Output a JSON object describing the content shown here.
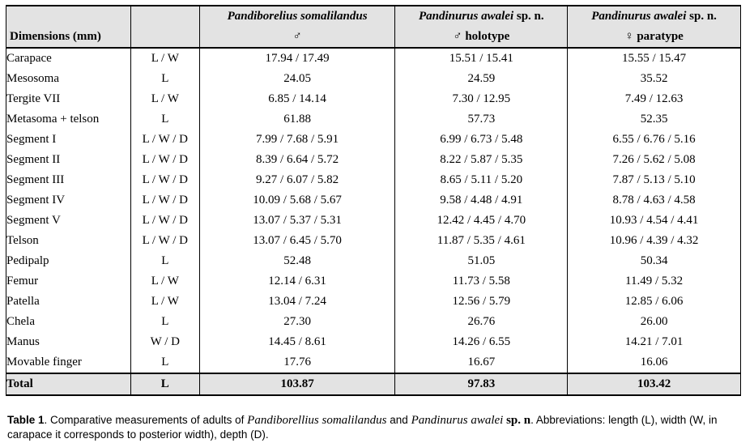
{
  "headers": {
    "dimensions": "Dimensions (mm)",
    "col1": {
      "species": "Pandiborelius somalilandus",
      "sn": "",
      "line2": "♂"
    },
    "col2": {
      "species": "Pandinurus awalei",
      "sn": "sp. n.",
      "line2": "♂ holotype"
    },
    "col3": {
      "species": "Pandinurus awalei",
      "sn": "sp. n.",
      "line2": "♀ paratype"
    }
  },
  "rows": [
    {
      "dimension": "Carapace",
      "indent": 0,
      "measure": "L / W",
      "v1": "17.94 / 17.49",
      "v2": "15.51 / 15.41",
      "v3": "15.55 / 15.47"
    },
    {
      "dimension": "Mesosoma",
      "indent": 0,
      "measure": "L",
      "v1": "24.05",
      "v2": "24.59",
      "v3": "35.52"
    },
    {
      "dimension": "Tergite VII",
      "indent": 1,
      "measure": "L / W",
      "v1": "6.85 / 14.14",
      "v2": "7.30 / 12.95",
      "v3": "7.49 / 12.63"
    },
    {
      "dimension": "Metasoma + telson",
      "indent": 0,
      "measure": "L",
      "v1": "61.88",
      "v2": "57.73",
      "v3": "52.35"
    },
    {
      "dimension": "Segment I",
      "indent": 1,
      "measure": "L / W / D",
      "v1": "7.99 / 7.68 / 5.91",
      "v2": "6.99 / 6.73 / 5.48",
      "v3": "6.55 / 6.76 / 5.16"
    },
    {
      "dimension": "Segment II",
      "indent": 1,
      "measure": "L / W / D",
      "v1": "8.39 / 6.64 / 5.72",
      "v2": "8.22 / 5.87 / 5.35",
      "v3": "7.26 / 5.62 / 5.08"
    },
    {
      "dimension": "Segment III",
      "indent": 1,
      "measure": "L / W / D",
      "v1": "9.27 / 6.07 / 5.82",
      "v2": "8.65 / 5.11 / 5.20",
      "v3": "7.87 / 5.13 / 5.10"
    },
    {
      "dimension": "Segment IV",
      "indent": 1,
      "measure": "L / W / D",
      "v1": "10.09 / 5.68 / 5.67",
      "v2": "9.58 / 4.48 / 4.91",
      "v3": "8.78 / 4.63 / 4.58"
    },
    {
      "dimension": "Segment V",
      "indent": 1,
      "measure": "L / W / D",
      "v1": "13.07 / 5.37 / 5.31",
      "v2": "12.42 / 4.45 / 4.70",
      "v3": "10.93 / 4.54 / 4.41"
    },
    {
      "dimension": "Telson",
      "indent": 1,
      "measure": "L / W / D",
      "v1": "13.07 / 6.45 / 5.70",
      "v2": "11.87 / 5.35 / 4.61",
      "v3": "10.96 / 4.39 / 4.32"
    },
    {
      "dimension": "Pedipalp",
      "indent": 0,
      "measure": "L",
      "v1": "52.48",
      "v2": "51.05",
      "v3": "50.34"
    },
    {
      "dimension": "Femur",
      "indent": 1,
      "measure": "L / W",
      "v1": "12.14 / 6.31",
      "v2": "11.73 / 5.58",
      "v3": "11.49 / 5.32"
    },
    {
      "dimension": "Patella",
      "indent": 1,
      "measure": "L / W",
      "v1": "13.04 / 7.24",
      "v2": "12.56 / 5.79",
      "v3": "12.85 / 6.06"
    },
    {
      "dimension": "Chela",
      "indent": 1,
      "measure": "L",
      "v1": "27.30",
      "v2": "26.76",
      "v3": "26.00"
    },
    {
      "dimension": "Manus",
      "indent": 2,
      "measure": "W / D",
      "v1": "14.45 / 8.61",
      "v2": "14.26 / 6.55",
      "v3": "14.21 / 7.01"
    },
    {
      "dimension": "Movable finger",
      "indent": 2,
      "measure": "L",
      "v1": "17.76",
      "v2": "16.67",
      "v3": "16.06"
    }
  ],
  "total": {
    "dimension": "Total",
    "measure": "L",
    "v1": "103.87",
    "v2": "97.83",
    "v3": "103.42"
  },
  "caption": {
    "label": "Table 1",
    "t1": ". Comparative measurements of adults of ",
    "sp1": "Pandiborellius somalilandus",
    "t2": " and ",
    "sp2": "Pandinurus awalei",
    "sn": "sp. n",
    "t3": ". Abbreviations: length (L), width (W, in carapace it corresponds to posterior width), depth (D)."
  },
  "colors": {
    "header_bg": "#e3e3e3",
    "border": "#000000"
  }
}
